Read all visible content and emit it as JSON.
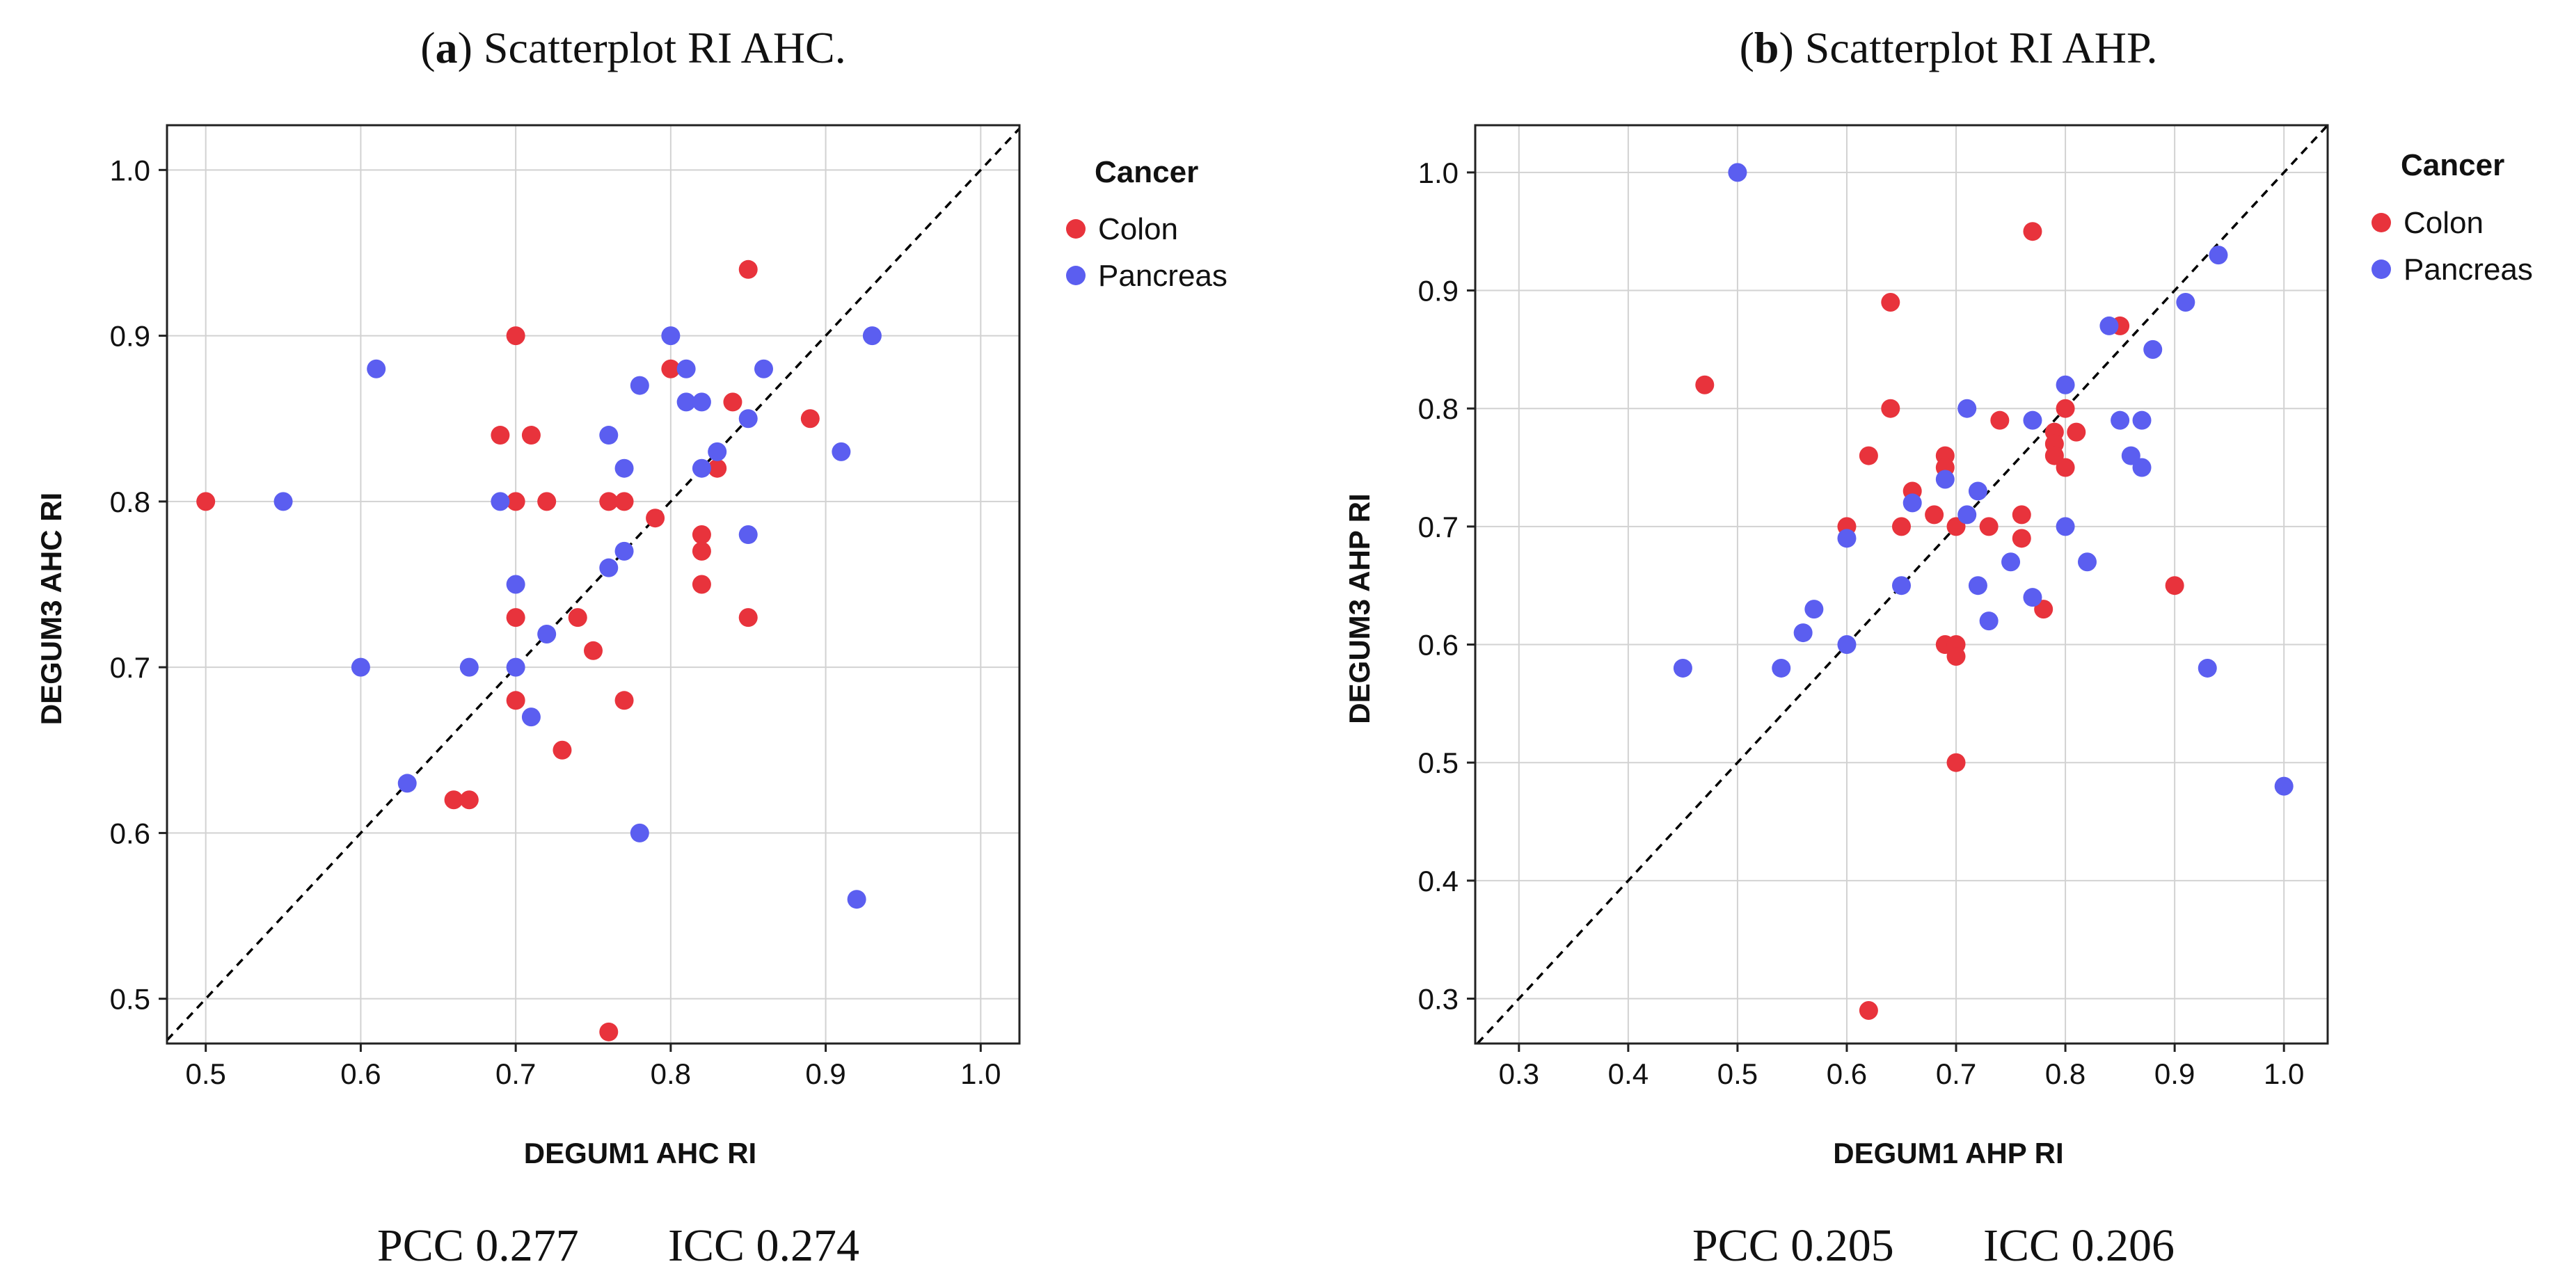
{
  "colors": {
    "Colon": "#e8333c",
    "Pancreas": "#5b5ef0",
    "grid": "#d2d2d2",
    "axis": "#222222"
  },
  "chart_data": [
    {
      "type": "scatter",
      "panel_label": "a",
      "title": "Scatterplot RI AHC.",
      "xlabel": "DEGUM1 AHC RI",
      "ylabel": "DEGUM3 AHC RI",
      "xlim": [
        0.475,
        1.025
      ],
      "ylim": [
        0.473,
        1.027
      ],
      "xticks": [
        0.5,
        0.6,
        0.7,
        0.8,
        0.9,
        1.0
      ],
      "yticks": [
        0.5,
        0.6,
        0.7,
        0.8,
        0.9,
        1.0
      ],
      "tick_labels_x": [
        "0.5",
        "0.6",
        "0.7",
        "0.8",
        "0.9",
        "1.0"
      ],
      "tick_labels_y": [
        "0.5",
        "0.6",
        "0.7",
        "0.8",
        "0.9",
        "1.0"
      ],
      "grid": true,
      "reference_line": "identity (dashed)",
      "legend": {
        "title": "Cancer",
        "entries": [
          "Colon",
          "Pancreas"
        ],
        "position": "right"
      },
      "stats": {
        "pcc_label": "PCC 0.277",
        "icc_label": "ICC 0.274"
      },
      "series": [
        {
          "name": "Colon",
          "points": [
            [
              0.5,
              0.8
            ],
            [
              0.7,
              0.9
            ],
            [
              0.85,
              0.94
            ],
            [
              0.69,
              0.84
            ],
            [
              0.71,
              0.84
            ],
            [
              0.7,
              0.8
            ],
            [
              0.72,
              0.8
            ],
            [
              0.76,
              0.8
            ],
            [
              0.77,
              0.8
            ],
            [
              0.8,
              0.88
            ],
            [
              0.84,
              0.86
            ],
            [
              0.83,
              0.82
            ],
            [
              0.89,
              0.85
            ],
            [
              0.79,
              0.79
            ],
            [
              0.82,
              0.78
            ],
            [
              0.82,
              0.77
            ],
            [
              0.82,
              0.75
            ],
            [
              0.85,
              0.73
            ],
            [
              0.7,
              0.73
            ],
            [
              0.74,
              0.73
            ],
            [
              0.75,
              0.71
            ],
            [
              0.7,
              0.68
            ],
            [
              0.77,
              0.68
            ],
            [
              0.73,
              0.65
            ],
            [
              0.66,
              0.62
            ],
            [
              0.67,
              0.62
            ],
            [
              0.76,
              0.48
            ]
          ]
        },
        {
          "name": "Pancreas",
          "points": [
            [
              0.55,
              0.8
            ],
            [
              0.61,
              0.88
            ],
            [
              0.6,
              0.7
            ],
            [
              0.63,
              0.63
            ],
            [
              0.67,
              0.7
            ],
            [
              0.69,
              0.8
            ],
            [
              0.7,
              0.75
            ],
            [
              0.7,
              0.7
            ],
            [
              0.71,
              0.67
            ],
            [
              0.72,
              0.72
            ],
            [
              0.76,
              0.84
            ],
            [
              0.76,
              0.76
            ],
            [
              0.77,
              0.82
            ],
            [
              0.77,
              0.77
            ],
            [
              0.78,
              0.87
            ],
            [
              0.78,
              0.6
            ],
            [
              0.8,
              0.9
            ],
            [
              0.81,
              0.88
            ],
            [
              0.81,
              0.86
            ],
            [
              0.82,
              0.86
            ],
            [
              0.82,
              0.82
            ],
            [
              0.83,
              0.83
            ],
            [
              0.85,
              0.85
            ],
            [
              0.85,
              0.78
            ],
            [
              0.86,
              0.88
            ],
            [
              0.91,
              0.83
            ],
            [
              0.92,
              0.56
            ],
            [
              0.93,
              0.9
            ]
          ]
        }
      ]
    },
    {
      "type": "scatter",
      "panel_label": "b",
      "title": "Scatterplot RI AHP.",
      "xlabel": "DEGUM1 AHP RI",
      "ylabel": "DEGUM3 AHP RI",
      "xlim": [
        0.26,
        1.04
      ],
      "ylim": [
        0.262,
        1.04
      ],
      "xticks": [
        0.3,
        0.4,
        0.5,
        0.6,
        0.7,
        0.8,
        0.9,
        1.0
      ],
      "yticks": [
        0.3,
        0.4,
        0.5,
        0.6,
        0.7,
        0.8,
        0.9,
        1.0
      ],
      "tick_labels_x": [
        "0.3",
        "0.4",
        "0.5",
        "0.6",
        "0.7",
        "0.8",
        "0.9",
        "1.0"
      ],
      "tick_labels_y": [
        "0.3",
        "0.4",
        "0.5",
        "0.6",
        "0.7",
        "0.8",
        "0.9",
        "1.0"
      ],
      "grid": true,
      "reference_line": "identity (dashed)",
      "legend": {
        "title": "Cancer",
        "entries": [
          "Colon",
          "Pancreas"
        ],
        "position": "right"
      },
      "stats": {
        "pcc_label": "PCC 0.205",
        "icc_label": "ICC 0.206"
      },
      "series": [
        {
          "name": "Colon",
          "points": [
            [
              0.47,
              0.82
            ],
            [
              0.64,
              0.89
            ],
            [
              0.77,
              0.95
            ],
            [
              0.64,
              0.8
            ],
            [
              0.62,
              0.76
            ],
            [
              0.66,
              0.73
            ],
            [
              0.6,
              0.7
            ],
            [
              0.65,
              0.7
            ],
            [
              0.68,
              0.71
            ],
            [
              0.69,
              0.76
            ],
            [
              0.69,
              0.75
            ],
            [
              0.7,
              0.7
            ],
            [
              0.73,
              0.7
            ],
            [
              0.74,
              0.79
            ],
            [
              0.76,
              0.71
            ],
            [
              0.76,
              0.69
            ],
            [
              0.78,
              0.63
            ],
            [
              0.79,
              0.78
            ],
            [
              0.79,
              0.77
            ],
            [
              0.79,
              0.76
            ],
            [
              0.8,
              0.8
            ],
            [
              0.8,
              0.75
            ],
            [
              0.81,
              0.78
            ],
            [
              0.85,
              0.87
            ],
            [
              0.9,
              0.65
            ],
            [
              0.69,
              0.6
            ],
            [
              0.7,
              0.6
            ],
            [
              0.7,
              0.59
            ],
            [
              0.7,
              0.5
            ],
            [
              0.62,
              0.29
            ]
          ]
        },
        {
          "name": "Pancreas",
          "points": [
            [
              0.5,
              1.0
            ],
            [
              0.45,
              0.58
            ],
            [
              0.54,
              0.58
            ],
            [
              0.56,
              0.61
            ],
            [
              0.57,
              0.63
            ],
            [
              0.6,
              0.69
            ],
            [
              0.6,
              0.6
            ],
            [
              0.65,
              0.65
            ],
            [
              0.66,
              0.72
            ],
            [
              0.69,
              0.74
            ],
            [
              0.71,
              0.8
            ],
            [
              0.71,
              0.71
            ],
            [
              0.72,
              0.73
            ],
            [
              0.72,
              0.65
            ],
            [
              0.73,
              0.62
            ],
            [
              0.75,
              0.67
            ],
            [
              0.77,
              0.79
            ],
            [
              0.77,
              0.64
            ],
            [
              0.8,
              0.82
            ],
            [
              0.8,
              0.7
            ],
            [
              0.82,
              0.67
            ],
            [
              0.84,
              0.87
            ],
            [
              0.85,
              0.79
            ],
            [
              0.86,
              0.76
            ],
            [
              0.87,
              0.79
            ],
            [
              0.87,
              0.75
            ],
            [
              0.88,
              0.85
            ],
            [
              0.91,
              0.89
            ],
            [
              0.93,
              0.58
            ],
            [
              0.94,
              0.93
            ],
            [
              1.0,
              0.48
            ]
          ]
        }
      ]
    }
  ]
}
